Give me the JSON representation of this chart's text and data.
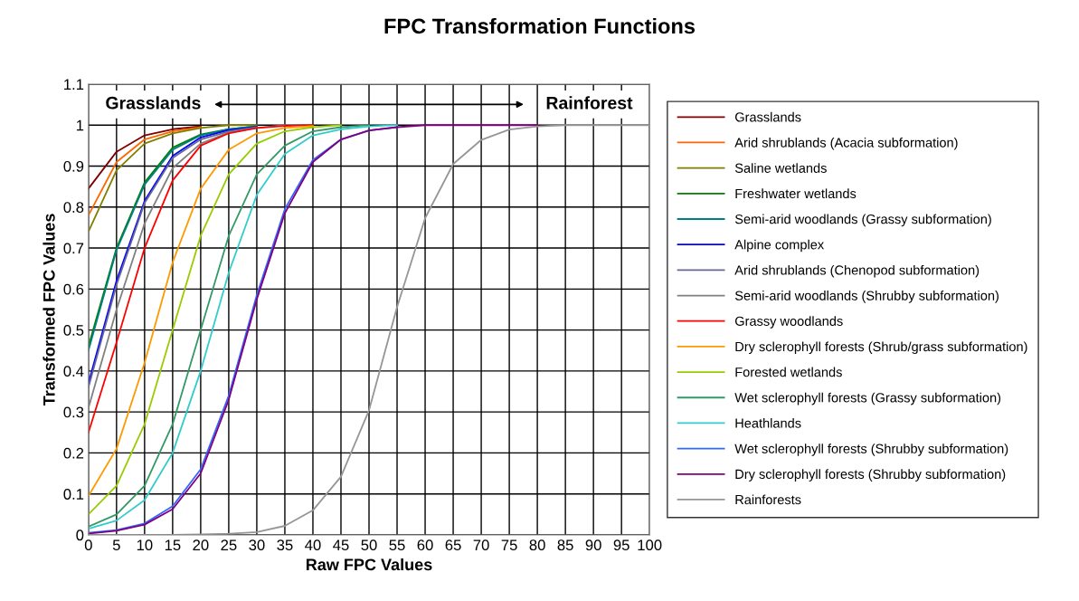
{
  "chart_data": {
    "type": "line",
    "title": "FPC Transformation Functions",
    "xlabel": "Raw FPC Values",
    "ylabel": "Transformed FPC Values",
    "annotations": [
      "Grasslands",
      "Rainforest"
    ],
    "x": [
      0,
      5,
      10,
      15,
      20,
      25,
      30,
      35,
      40,
      45,
      50,
      55,
      60,
      65,
      70,
      75,
      80,
      85,
      90,
      95,
      100
    ],
    "xlim": [
      0,
      100
    ],
    "xticks": [
      0,
      5,
      10,
      15,
      20,
      25,
      30,
      35,
      40,
      45,
      50,
      55,
      60,
      65,
      70,
      75,
      80,
      85,
      90,
      95,
      100
    ],
    "ylim": [
      0,
      1.1
    ],
    "yticks": [
      0,
      0.1,
      0.2,
      0.3,
      0.4,
      0.5,
      0.6,
      0.7,
      0.8,
      0.9,
      1,
      1.1
    ],
    "grid": true,
    "legend": "right",
    "marker": "none",
    "line_style": "solid",
    "series": [
      {
        "name": "Grasslands",
        "color": "#800000",
        "values": [
          0.845,
          0.935,
          0.975,
          0.99,
          0.997,
          null,
          null,
          null,
          null,
          null,
          null,
          null,
          null,
          null,
          null,
          null,
          null,
          null,
          null,
          null,
          null
        ]
      },
      {
        "name": "Arid shrublands (Acacia subformation)",
        "color": "#ff6600",
        "values": [
          0.78,
          0.91,
          0.965,
          0.985,
          0.995,
          null,
          null,
          null,
          null,
          null,
          null,
          null,
          null,
          null,
          null,
          null,
          null,
          null,
          null,
          null,
          null
        ]
      },
      {
        "name": "Saline wetlands",
        "color": "#808000",
        "values": [
          0.74,
          0.89,
          0.955,
          0.98,
          0.993,
          1,
          1,
          null,
          null,
          null,
          null,
          null,
          null,
          null,
          null,
          null,
          null,
          null,
          null,
          null,
          null
        ]
      },
      {
        "name": "Freshwater wetlands",
        "color": "#008000",
        "values": [
          0.46,
          0.7,
          0.86,
          0.945,
          0.977,
          0.99,
          0.997,
          null,
          null,
          null,
          null,
          null,
          null,
          null,
          null,
          null,
          null,
          null,
          null,
          null,
          null
        ]
      },
      {
        "name": "Semi-arid woodlands (Grassy subformation)",
        "color": "#008080",
        "values": [
          0.45,
          0.695,
          0.855,
          0.94,
          0.975,
          0.99,
          0.997,
          null,
          null,
          null,
          null,
          null,
          null,
          null,
          null,
          null,
          null,
          null,
          null,
          null,
          null
        ]
      },
      {
        "name": "Alpine complex",
        "color": "#0000ff",
        "values": [
          0.37,
          0.62,
          0.815,
          0.925,
          0.97,
          0.988,
          0.996,
          null,
          null,
          null,
          null,
          null,
          null,
          null,
          null,
          null,
          null,
          null,
          null,
          null,
          null
        ]
      },
      {
        "name": "Arid shrublands (Chenopod subformation)",
        "color": "#666699",
        "values": [
          0.36,
          0.61,
          0.81,
          0.92,
          0.965,
          0.985,
          0.995,
          null,
          null,
          null,
          null,
          null,
          null,
          null,
          null,
          null,
          null,
          null,
          null,
          null,
          null
        ]
      },
      {
        "name": "Semi-arid woodlands (Shrubby subformation)",
        "color": "#808080",
        "values": [
          0.31,
          0.55,
          0.76,
          0.895,
          0.955,
          0.982,
          0.993,
          1,
          null,
          null,
          null,
          null,
          null,
          null,
          null,
          null,
          null,
          null,
          null,
          null,
          null
        ]
      },
      {
        "name": "Grassy woodlands",
        "color": "#ff0000",
        "values": [
          0.25,
          0.47,
          0.7,
          0.865,
          0.95,
          0.98,
          0.993,
          0.998,
          1,
          null,
          null,
          null,
          null,
          null,
          null,
          null,
          null,
          null,
          null,
          null,
          null
        ]
      },
      {
        "name": "Dry sclerophyll forests (Shrub/grass subformation)",
        "color": "#ff9900",
        "values": [
          0.095,
          0.21,
          0.42,
          0.665,
          0.845,
          0.94,
          0.98,
          0.993,
          0.998,
          null,
          null,
          null,
          null,
          null,
          null,
          null,
          null,
          null,
          null,
          null,
          null
        ]
      },
      {
        "name": "Forested wetlands",
        "color": "#99cc00",
        "values": [
          0.05,
          0.12,
          0.27,
          0.5,
          0.73,
          0.88,
          0.955,
          0.985,
          0.995,
          1,
          null,
          null,
          null,
          null,
          null,
          null,
          null,
          null,
          null,
          null,
          null
        ]
      },
      {
        "name": "Wet sclerophyll forests (Grassy subformation)",
        "color": "#339966",
        "values": [
          0.02,
          0.05,
          0.12,
          0.27,
          0.5,
          0.73,
          0.88,
          0.95,
          0.985,
          0.995,
          1,
          null,
          null,
          null,
          null,
          null,
          null,
          null,
          null,
          null,
          null
        ]
      },
      {
        "name": "Heathlands",
        "color": "#33cccc",
        "values": [
          0.015,
          0.035,
          0.085,
          0.2,
          0.4,
          0.64,
          0.83,
          0.93,
          0.975,
          0.99,
          0.997,
          1,
          null,
          null,
          null,
          null,
          null,
          null,
          null,
          null,
          null
        ]
      },
      {
        "name": "Wet sclerophyll forests (Shrubby subformation)",
        "color": "#3366ff",
        "values": [
          0.005,
          0.012,
          0.028,
          0.07,
          0.16,
          0.34,
          0.585,
          0.795,
          0.915,
          0.965,
          0.987,
          0.995,
          null,
          null,
          null,
          null,
          null,
          null,
          null,
          null,
          null
        ]
      },
      {
        "name": "Dry sclerophyll forests (Shrubby subformation)",
        "color": "#800080",
        "values": [
          0.003,
          0.01,
          0.025,
          0.063,
          0.15,
          0.33,
          0.575,
          0.785,
          0.91,
          0.965,
          0.987,
          0.995,
          1,
          1,
          1,
          1,
          1,
          null,
          null,
          null,
          null
        ]
      },
      {
        "name": "Rainforests",
        "color": "#969696",
        "values": [
          0,
          0,
          0,
          0,
          0.001,
          0.003,
          0.007,
          0.022,
          0.06,
          0.142,
          0.304,
          0.556,
          0.773,
          0.905,
          0.964,
          0.989,
          0.997,
          1,
          1,
          1,
          1
        ]
      }
    ]
  }
}
